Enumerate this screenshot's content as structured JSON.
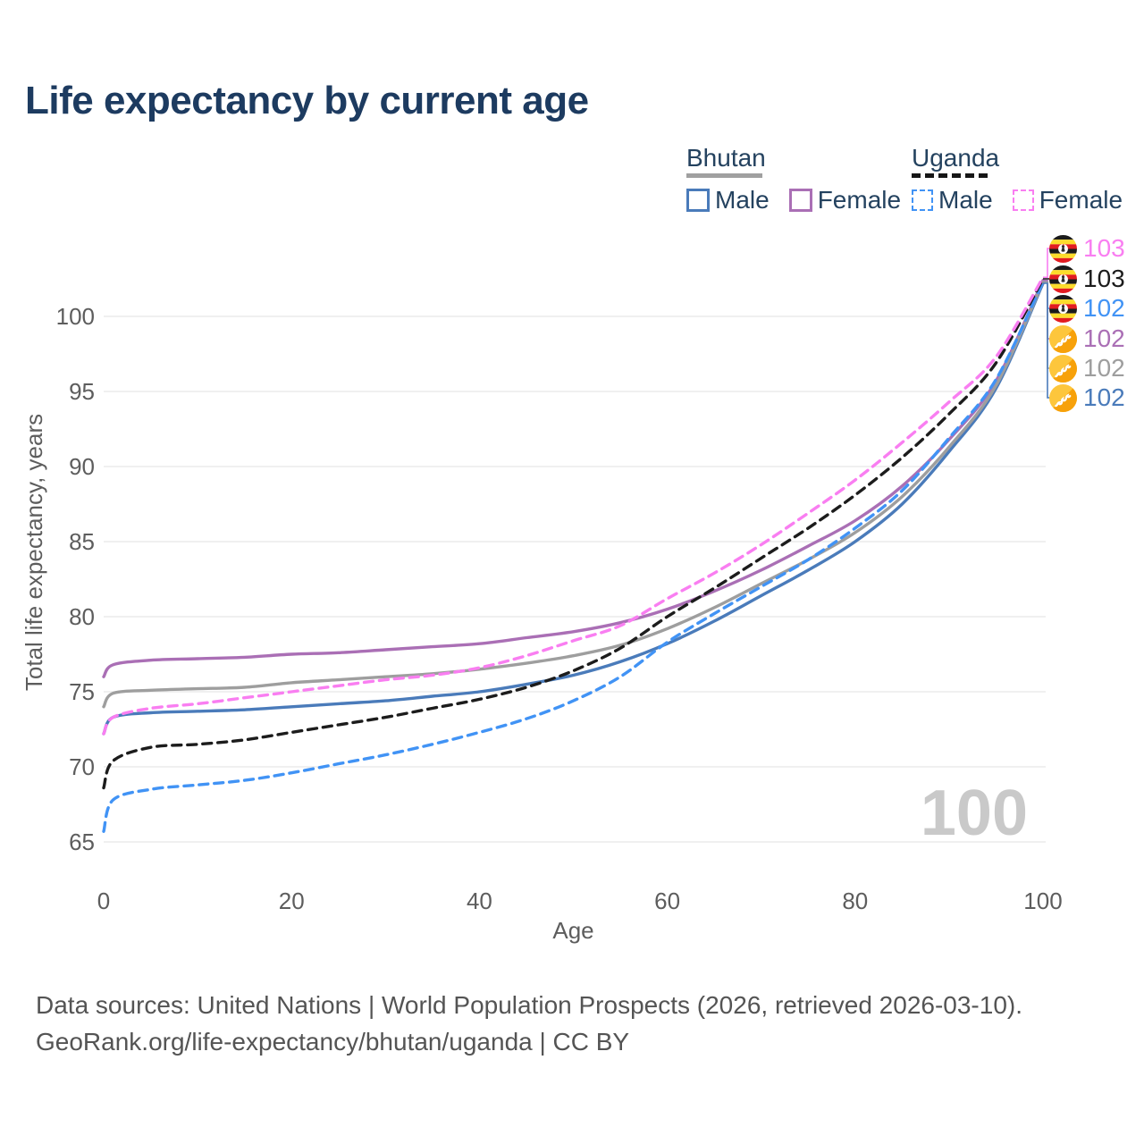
{
  "title": "Life expectancy by current age",
  "legend": {
    "groups": [
      {
        "name": "Bhutan",
        "underline_color": "#a0a0a0",
        "underline_style": "solid",
        "items": [
          {
            "label": "Male",
            "color": "#4a7bba",
            "dash": false
          },
          {
            "label": "Female",
            "color": "#aa6fb5",
            "dash": false
          }
        ]
      },
      {
        "name": "Uganda",
        "underline_color": "#161616",
        "underline_style": "dashed",
        "items": [
          {
            "label": "Male",
            "color": "#4193f5",
            "dash": true
          },
          {
            "label": "Female",
            "color": "#f97ef1",
            "dash": true
          }
        ]
      }
    ]
  },
  "chart_data": {
    "type": "line",
    "title": "Life expectancy by current age",
    "xlabel": "Age",
    "ylabel": "Total life expectancy, years",
    "xlim": [
      0,
      100
    ],
    "ylim": [
      65,
      103
    ],
    "xticks": [
      0,
      20,
      40,
      60,
      80,
      100
    ],
    "yticks": [
      65,
      70,
      75,
      80,
      85,
      90,
      95,
      100
    ],
    "grid": "horizontal",
    "x": [
      0,
      1,
      5,
      10,
      15,
      20,
      25,
      30,
      35,
      40,
      45,
      50,
      55,
      60,
      65,
      70,
      75,
      80,
      85,
      90,
      95,
      100
    ],
    "series": [
      {
        "name": "Bhutan Male",
        "color": "#4a7bba",
        "dash": false,
        "values": [
          72.2,
          73.3,
          73.6,
          73.7,
          73.8,
          74.0,
          74.2,
          74.4,
          74.7,
          75.0,
          75.5,
          76.1,
          77.0,
          78.2,
          79.7,
          81.4,
          83.1,
          85.0,
          87.5,
          91.0,
          95.2,
          102.2
        ]
      },
      {
        "name": "Bhutan Female",
        "color": "#aa6fb5",
        "dash": false,
        "values": [
          76.0,
          76.8,
          77.1,
          77.2,
          77.3,
          77.5,
          77.6,
          77.8,
          78.0,
          78.2,
          78.6,
          79.0,
          79.6,
          80.5,
          81.7,
          83.1,
          84.7,
          86.4,
          88.7,
          91.8,
          95.7,
          102.4
        ]
      },
      {
        "name": "Bhutan",
        "color": "#9e9e9e",
        "dash": false,
        "values": [
          74.0,
          74.9,
          75.1,
          75.2,
          75.3,
          75.6,
          75.8,
          76.0,
          76.2,
          76.5,
          76.9,
          77.4,
          78.1,
          79.2,
          80.6,
          82.2,
          83.8,
          85.6,
          88.0,
          91.3,
          95.4,
          102.3
        ]
      },
      {
        "name": "Uganda Male",
        "color": "#4193f5",
        "dash": true,
        "values": [
          65.7,
          67.8,
          68.5,
          68.8,
          69.1,
          69.6,
          70.2,
          70.8,
          71.5,
          72.3,
          73.2,
          74.4,
          76.0,
          78.3,
          80.2,
          82.0,
          83.8,
          85.9,
          88.4,
          91.9,
          95.8,
          102.3
        ]
      },
      {
        "name": "Uganda",
        "color": "#1c1c1c",
        "dash": true,
        "values": [
          68.6,
          70.4,
          71.3,
          71.5,
          71.8,
          72.3,
          72.8,
          73.3,
          73.9,
          74.5,
          75.3,
          76.4,
          77.9,
          80.0,
          81.9,
          83.9,
          85.9,
          88.1,
          90.6,
          93.5,
          96.9,
          102.5
        ]
      },
      {
        "name": "Uganda Female",
        "color": "#f97ef1",
        "dash": true,
        "values": [
          72.2,
          73.3,
          73.9,
          74.2,
          74.6,
          75.0,
          75.4,
          75.8,
          76.1,
          76.6,
          77.4,
          78.4,
          79.4,
          81.2,
          82.9,
          84.8,
          86.9,
          89.1,
          91.6,
          94.3,
          97.3,
          102.6
        ]
      }
    ]
  },
  "end_labels": [
    {
      "series": "Uganda Female",
      "flag": "uganda",
      "value": "103",
      "color": "#f97ef1"
    },
    {
      "series": "Uganda",
      "flag": "uganda",
      "value": "103",
      "color": "#1c1c1c"
    },
    {
      "series": "Uganda Male",
      "flag": "uganda",
      "value": "102",
      "color": "#4193f5"
    },
    {
      "series": "Bhutan Female",
      "flag": "bhutan",
      "value": "102",
      "color": "#aa6fb5"
    },
    {
      "series": "Bhutan",
      "flag": "bhutan",
      "value": "102",
      "color": "#9e9e9e"
    },
    {
      "series": "Bhutan Male",
      "flag": "bhutan",
      "value": "102",
      "color": "#4a7bba"
    }
  ],
  "watermark": "100",
  "footer": {
    "line1": "Data sources: United Nations | World Population Prospects (2026, retrieved 2026-03-10).",
    "line2": "GeoRank.org/life-expectancy/bhutan/uganda | CC BY"
  }
}
